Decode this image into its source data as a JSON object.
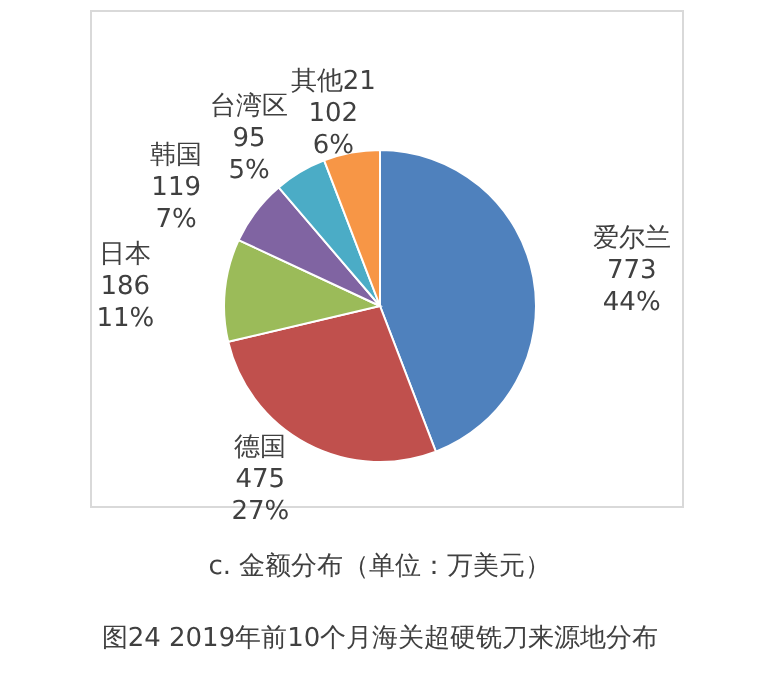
{
  "chart_data": {
    "type": "pie",
    "title": "c. 金额分布（单位：万美元）",
    "annotations": [
      "图24   2019年前10个月海关超硬铣刀来源地分布"
    ],
    "categories": [
      "爱尔兰",
      "德国",
      "日本",
      "韩国",
      "台湾区",
      "其他21"
    ],
    "values": [
      773,
      475,
      186,
      119,
      95,
      102
    ],
    "value_labels": [
      "773\n44%",
      "475\n27%",
      "186\n11%",
      "119\n7%",
      "95\n5%",
      "102\n6%"
    ],
    "colors": [
      "#4f81bd",
      "#c0504d",
      "#9bbb59",
      "#8064a2",
      "#4bacc6",
      "#f79646"
    ],
    "legend": false
  }
}
